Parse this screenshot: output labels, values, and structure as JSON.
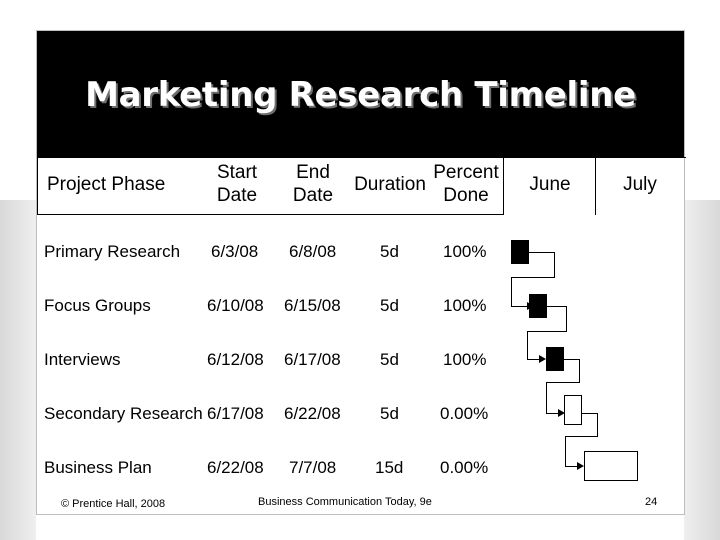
{
  "title": "Marketing Research Timeline",
  "headers": {
    "phase": "Project Phase",
    "start_1": "Start",
    "start_2": "Date",
    "end_1": "End",
    "end_2": "Date",
    "duration": "Duration",
    "percent_1": "Percent",
    "percent_2": "Done",
    "month_1": "June",
    "month_2": "July"
  },
  "rows": [
    {
      "phase": "Primary Research",
      "start": "6/3/08",
      "end": "6/8/08",
      "duration": "5d",
      "percent": "100%",
      "progress": 1.0
    },
    {
      "phase": "Focus Groups",
      "start": "6/10/08",
      "end": "6/15/08",
      "duration": "5d",
      "percent": "100%",
      "progress": 1.0
    },
    {
      "phase": "Interviews",
      "start": "6/12/08",
      "end": "6/17/08",
      "duration": "5d",
      "percent": "100%",
      "progress": 1.0
    },
    {
      "phase": "Secondary Research",
      "start": "6/17/08",
      "end": "6/22/08",
      "duration": "5d",
      "percent": "0.00%",
      "progress": 0.0
    },
    {
      "phase": "Business Plan",
      "start": "6/22/08",
      "end": "7/7/08",
      "duration": "15d",
      "percent": "0.00%",
      "progress": 0.0
    }
  ],
  "footer": {
    "copyright": "© Prentice Hall, 2008",
    "source": "Business Communication Today, 9e",
    "page": "24"
  }
}
